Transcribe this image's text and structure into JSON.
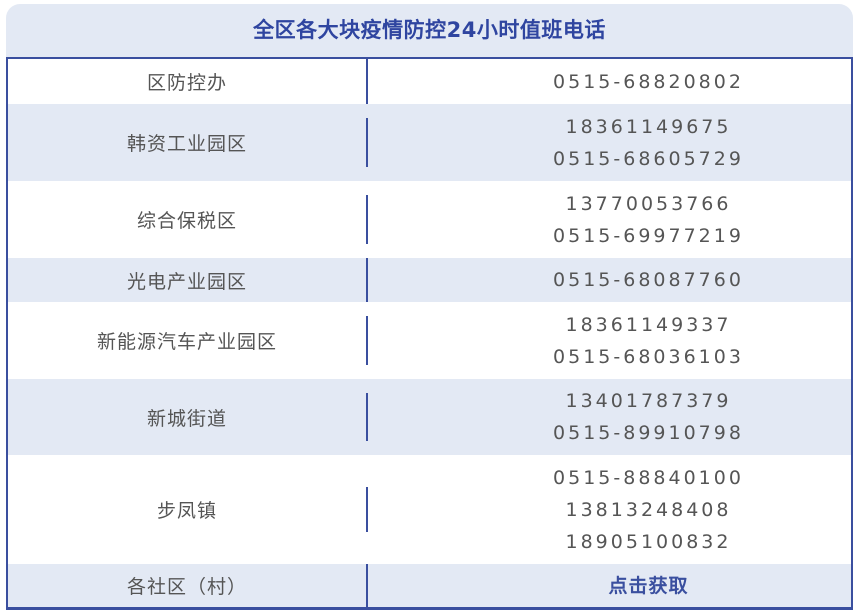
{
  "title": "全区各大块疫情防控24小时值班电话",
  "rows": [
    {
      "name": "区防控办",
      "phones": [
        "0515-68820802"
      ]
    },
    {
      "name": "韩资工业园区",
      "phones": [
        "18361149675",
        "0515-68605729"
      ]
    },
    {
      "name": "综合保税区",
      "phones": [
        "13770053766",
        "0515-69977219"
      ]
    },
    {
      "name": "光电产业园区",
      "phones": [
        "0515-68087760"
      ]
    },
    {
      "name": "新能源汽车产业园区",
      "phones": [
        "18361149337",
        "0515-68036103"
      ]
    },
    {
      "name": "新城街道",
      "phones": [
        "13401787379",
        "0515-89910798"
      ]
    },
    {
      "name": "步凤镇",
      "phones": [
        "0515-88840100",
        "13813248408",
        "18905100832"
      ]
    },
    {
      "name": "各社区（村）",
      "link": "点击获取"
    }
  ],
  "colors": {
    "accent": "#3a4f9f",
    "stripe": "#e3e9f4",
    "text": "#555555"
  }
}
